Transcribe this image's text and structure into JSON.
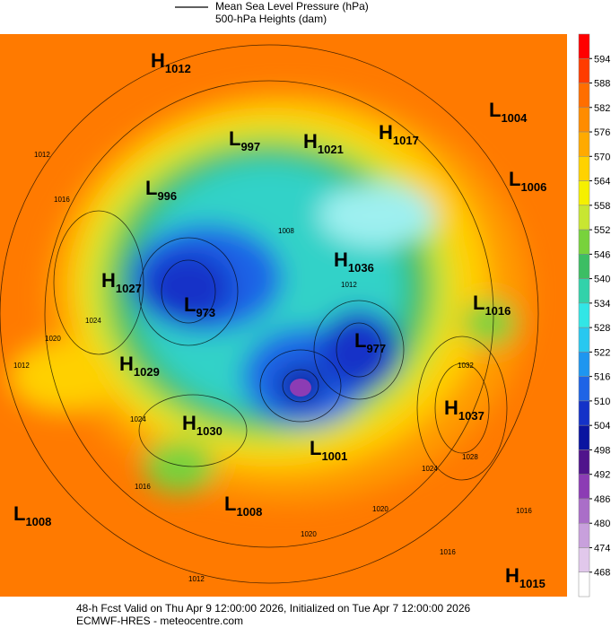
{
  "legend": {
    "line_label": "Mean Sea Level Pressure (hPa)",
    "fill_label": "500-hPa Heights (dam)"
  },
  "colorbar": {
    "ticks": [
      594,
      588,
      582,
      576,
      570,
      564,
      558,
      552,
      546,
      540,
      534,
      528,
      522,
      516,
      510,
      504,
      498,
      492,
      486,
      480,
      474,
      468
    ],
    "colors": [
      "#ff0000",
      "#ff3c00",
      "#ff6e00",
      "#ff8c00",
      "#ffaa00",
      "#ffd200",
      "#f5f000",
      "#c8e632",
      "#78d23c",
      "#3cbe64",
      "#32d2aa",
      "#32e6e6",
      "#28c8f0",
      "#1e96f0",
      "#1e64e6",
      "#1432c8",
      "#0a14a0",
      "#50148c",
      "#8c3cb4",
      "#aa6ec8",
      "#c8a0dc",
      "#e1c8eb",
      "#ffffff"
    ]
  },
  "centers": [
    {
      "letter": "H",
      "value": 1012
    },
    {
      "letter": "L",
      "value": 1004
    },
    {
      "letter": "L",
      "value": 997
    },
    {
      "letter": "H",
      "value": 1021
    },
    {
      "letter": "H",
      "value": 1017
    },
    {
      "letter": "L",
      "value": 1006
    },
    {
      "letter": "L",
      "value": 996
    },
    {
      "letter": "H",
      "value": 1036
    },
    {
      "letter": "H",
      "value": 1027
    },
    {
      "letter": "L",
      "value": 973
    },
    {
      "letter": "L",
      "value": 1016
    },
    {
      "letter": "L",
      "value": 977
    },
    {
      "letter": "H",
      "value": 1029
    },
    {
      "letter": "H",
      "value": 1037
    },
    {
      "letter": "H",
      "value": 1030
    },
    {
      "letter": "L",
      "value": 1001
    },
    {
      "letter": "L",
      "value": 1008
    },
    {
      "letter": "L",
      "value": 1008
    },
    {
      "letter": "H",
      "value": 1015
    }
  ],
  "isobar_labels": [
    1012,
    1016,
    1024,
    1020,
    1012,
    1024,
    1016,
    1032,
    1028,
    1024,
    1020,
    1016,
    1016,
    1012,
    1020,
    1008,
    1012
  ],
  "footer": {
    "line1": "48-h Fcst Valid on Thu Apr  9 12:00:00 2026, Initialized on Tue Apr  7 12:00:00 2026",
    "line2": "ECMWF-HRES  - meteocentre.com"
  }
}
